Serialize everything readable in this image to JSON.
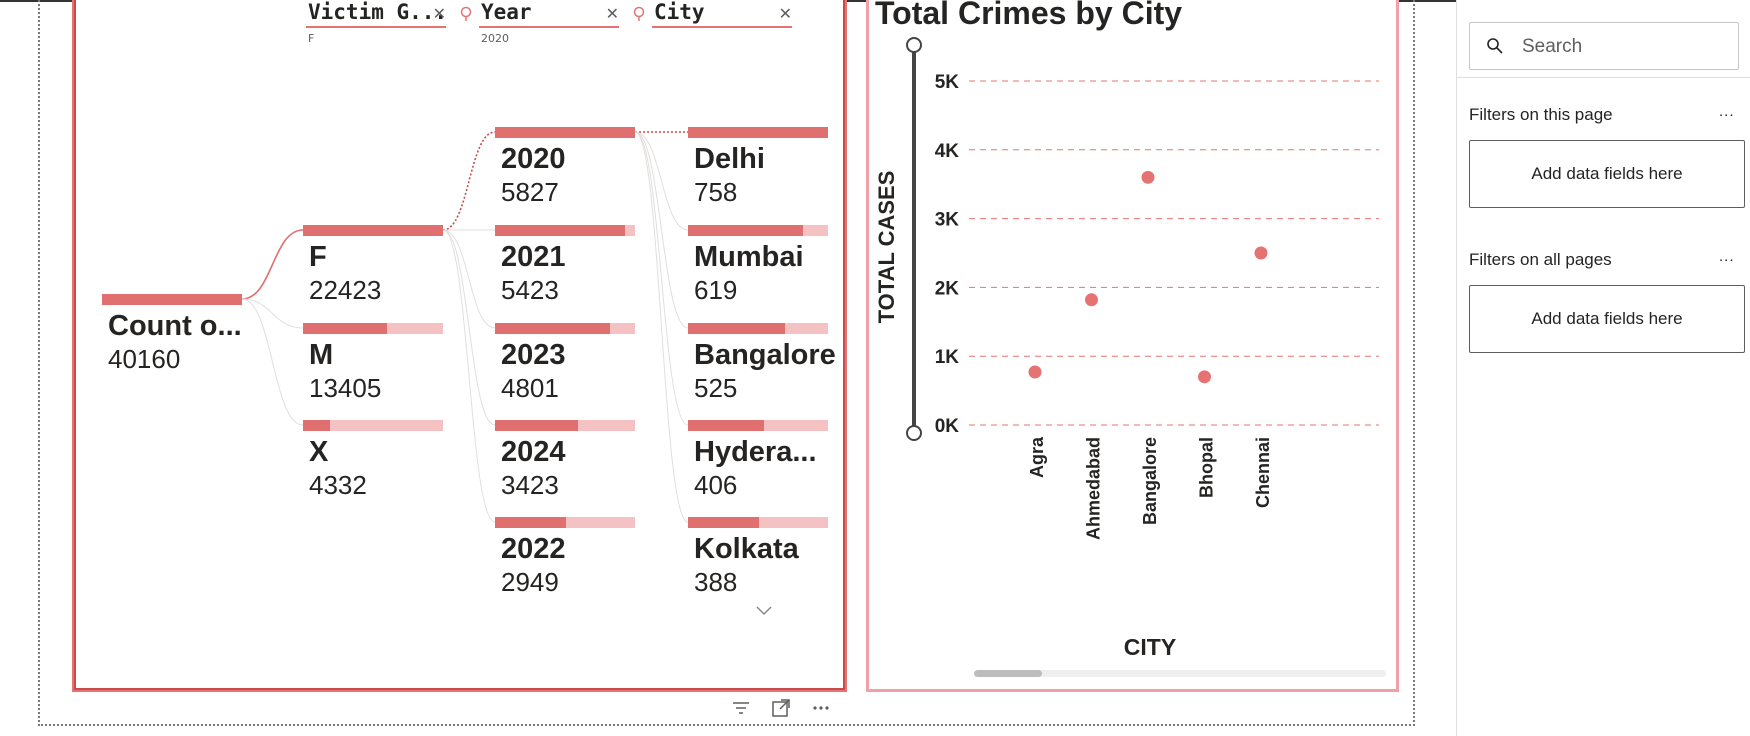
{
  "decomposition_tree": {
    "columns": [
      {
        "header": "Victim G...",
        "subtitle": "F",
        "has_bulb": false
      },
      {
        "header": "Year",
        "subtitle": "2020",
        "has_bulb": true
      },
      {
        "header": "City",
        "subtitle": "",
        "has_bulb": true
      }
    ],
    "root": {
      "label": "Count o...",
      "value": "40160"
    },
    "gender_nodes": [
      {
        "label": "F",
        "value": "22423",
        "fill": 1.0
      },
      {
        "label": "M",
        "value": "13405",
        "fill": 0.6
      },
      {
        "label": "X",
        "value": "4332",
        "fill": 0.19
      }
    ],
    "year_nodes": [
      {
        "label": "2020",
        "value": "5827",
        "fill": 1.0
      },
      {
        "label": "2021",
        "value": "5423",
        "fill": 0.93
      },
      {
        "label": "2023",
        "value": "4801",
        "fill": 0.82
      },
      {
        "label": "2024",
        "value": "3423",
        "fill": 0.59
      },
      {
        "label": "2022",
        "value": "2949",
        "fill": 0.51
      }
    ],
    "city_nodes": [
      {
        "label": "Delhi",
        "value": "758",
        "fill": 1.0
      },
      {
        "label": "Mumbai",
        "value": "619",
        "fill": 0.82
      },
      {
        "label": "Bangalore",
        "value": "525",
        "fill": 0.69
      },
      {
        "label": "Hydera...",
        "value": "406",
        "fill": 0.54
      },
      {
        "label": "Kolkata",
        "value": "388",
        "fill": 0.51
      }
    ],
    "colors": {
      "accent": "#e07070",
      "track": "#f4c2c2"
    }
  },
  "chart_data": {
    "type": "scatter",
    "title": "Total Crimes by City",
    "xlabel": "CITY",
    "ylabel": "TOTAL CASES",
    "categories": [
      "Agra",
      "Ahmedabad",
      "Bangalore",
      "Bhopal",
      "Chennai"
    ],
    "values": [
      770,
      1820,
      3600,
      700,
      2500
    ],
    "yticks": [
      "0K",
      "1K",
      "2K",
      "3K",
      "4K",
      "5K"
    ],
    "ylim": [
      0,
      5000
    ],
    "grid": true,
    "point_color": "#e57373"
  },
  "filter_pane": {
    "search_placeholder": "Search",
    "sections": [
      {
        "title": "Filters on this page",
        "more": "...",
        "well": "Add data fields here"
      },
      {
        "title": "Filters on all pages",
        "more": "...",
        "well": "Add data fields here"
      }
    ]
  },
  "icons": [
    "filter-icon",
    "focus-mode-icon",
    "more-options-icon",
    "search-icon",
    "bulb-icon",
    "close-icon",
    "chevron-down-icon"
  ]
}
